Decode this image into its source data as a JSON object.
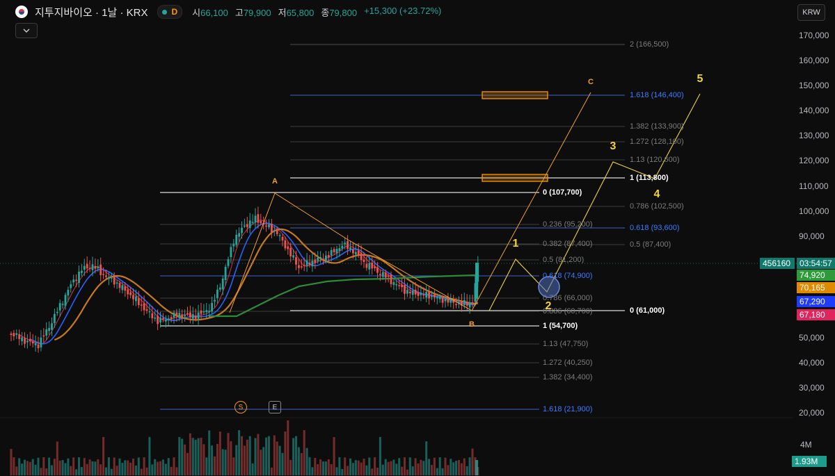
{
  "header": {
    "symbol_title": "지투지바이오 · 1날 · KRX",
    "status_letter": "D",
    "ohlc": [
      {
        "label": "시",
        "value": "66,100"
      },
      {
        "label": "고",
        "value": "79,900"
      },
      {
        "label": "저",
        "value": "65,800"
      },
      {
        "label": "종",
        "value": "79,800"
      }
    ],
    "change": "+15,300 (+23.72%)"
  },
  "toolbar": {
    "collapse_icon": "chevron-down-icon",
    "currency": "KRW"
  },
  "price_scale": {
    "labels": [
      "170,000",
      "160,000",
      "150,000",
      "140,000",
      "130,000",
      "120,000",
      "110,000",
      "100,000",
      "90,000",
      "50,000",
      "40,000",
      "30,000",
      "20,000"
    ],
    "volume_label": "4M"
  },
  "price_badges": {
    "symbol_code": "456160",
    "countdown": "03:54:57",
    "ma1": "74,920",
    "ma2": "70,165",
    "ma3": "67,290",
    "ma4": "67,180",
    "volume": "1.93M"
  },
  "colors": {
    "up": "#26a69a",
    "down": "#ef5350",
    "ma_green": "#2e8b3a",
    "ma_orange": "#c77a1e",
    "ma_blue": "#2962ff",
    "ma_red": "#d8304a",
    "fib_blue": "#3d7bff",
    "wave_yellow": "#f0d43a",
    "wave_orange": "#f0a030"
  },
  "fib_labels_right": [
    {
      "text": "2 (166,500)",
      "price": 166500,
      "style": "gray"
    },
    {
      "text": "1.618 (146,400)",
      "price": 146400,
      "style": "blue"
    },
    {
      "text": "1.382 (133,900)",
      "price": 133900,
      "style": "gray"
    },
    {
      "text": "1.272 (128,100)",
      "price": 128100,
      "style": "gray"
    },
    {
      "text": "1.13 (120,600)",
      "price": 120600,
      "style": "gray"
    },
    {
      "text": "1 (113,800)",
      "price": 113800,
      "style": "white"
    },
    {
      "text": "0.786 (102,500)",
      "price": 102500,
      "style": "gray"
    },
    {
      "text": "0.618 (93,600)",
      "price": 93600,
      "style": "blue"
    },
    {
      "text": "0.5 (87,400)",
      "price": 87400,
      "style": "gray"
    },
    {
      "text": "0 (61,000)",
      "price": 61000,
      "style": "white"
    }
  ],
  "fib_labels_left": [
    {
      "text": "0 (107,700)",
      "price": 107700,
      "style": "white"
    },
    {
      "text": "0.236 (95,200)",
      "price": 95200,
      "style": "gray"
    },
    {
      "text": "0.382 (87,400)",
      "price": 87400,
      "style": "gray"
    },
    {
      "text": "0.5 (81,200)",
      "price": 81200,
      "style": "gray"
    },
    {
      "text": "0.618 (74,900)",
      "price": 74900,
      "style": "blue"
    },
    {
      "text": "0.786 (66,000)",
      "price": 66000,
      "style": "gray"
    },
    {
      "text": "0.886 (60,700)",
      "price": 60700,
      "style": "gray"
    },
    {
      "text": "1 (54,700)",
      "price": 54700,
      "style": "white"
    },
    {
      "text": "1.13 (47,750)",
      "price": 47750,
      "style": "gray"
    },
    {
      "text": "1.272 (40,250)",
      "price": 40250,
      "style": "gray"
    },
    {
      "text": "1.382 (34,400)",
      "price": 34400,
      "style": "gray"
    },
    {
      "text": "1.618 (21,900)",
      "price": 21900,
      "style": "blue"
    }
  ],
  "waves": {
    "abc": [
      "A",
      "B",
      "C"
    ],
    "impulse": [
      "1",
      "2",
      "3",
      "4",
      "5"
    ]
  },
  "markers": {
    "s": "S",
    "e": "E"
  }
}
